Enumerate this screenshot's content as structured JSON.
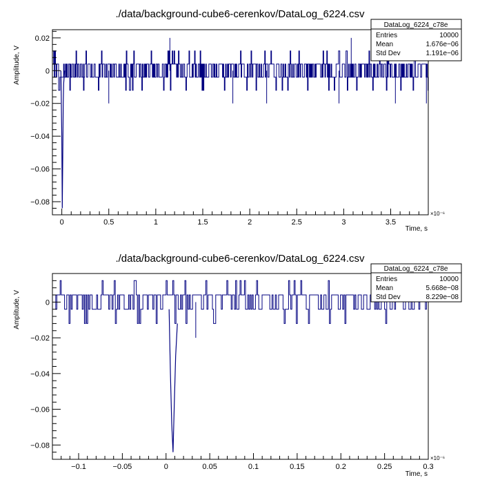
{
  "chart_data": [
    {
      "type": "line",
      "title": "./data/background-cube6-cerenkov/DataLog_6224.csv",
      "xlabel": "Time, s",
      "ylabel": "Amplitude, V",
      "x_exponent": "×10⁻⁶",
      "xlim": [
        -0.1,
        3.9
      ],
      "ylim": [
        -0.088,
        0.025
      ],
      "x_ticks": [
        0,
        0.5,
        1,
        1.5,
        2,
        2.5,
        3,
        3.5
      ],
      "x_tick_labels": [
        "0",
        "0.5",
        "1",
        "1.5",
        "2",
        "2.5",
        "3",
        "3.5"
      ],
      "y_ticks": [
        0.02,
        0,
        -0.02,
        -0.04,
        -0.06,
        -0.08
      ],
      "y_tick_labels": [
        "0.02",
        "0",
        "−0.02",
        "−0.04",
        "−0.06",
        "−0.08"
      ],
      "series_color": "#000080",
      "baseline": {
        "x_range": [
          -0.1,
          3.9
        ],
        "levels": [
          0.004,
          -0.004
        ],
        "noise_band": [
          -0.012,
          0.012
        ]
      },
      "pulse": {
        "x": [
          -0.01,
          0.0,
          0.005,
          0.01,
          0.015,
          0.02,
          0.03
        ],
        "y": [
          0.0,
          -0.04,
          -0.084,
          -0.053,
          -0.02,
          -0.008,
          0.0
        ]
      },
      "outliers": [
        {
          "x": 1.15,
          "y": 0.02
        },
        {
          "x": 3.08,
          "y": 0.02
        },
        {
          "x": 0.5,
          "y": -0.02
        },
        {
          "x": 1.82,
          "y": -0.02
        },
        {
          "x": 2.18,
          "y": -0.02
        },
        {
          "x": 2.95,
          "y": -0.02
        },
        {
          "x": 3.55,
          "y": -0.02
        },
        {
          "x": 3.88,
          "y": -0.02
        }
      ],
      "stats": {
        "name": "DataLog_6224_c78e",
        "rows": [
          {
            "label": "Entries",
            "value": "10000"
          },
          {
            "label": "Mean",
            "value": "1.676e−06"
          },
          {
            "label": "Std Dev",
            "value": "1.191e−06"
          }
        ]
      }
    },
    {
      "type": "line",
      "title": "./data/background-cube6-cerenkov/DataLog_6224.csv",
      "xlabel": "Time, s",
      "ylabel": "Amplitude, V",
      "x_exponent": "×10⁻⁶",
      "xlim": [
        -0.13,
        0.3
      ],
      "ylim": [
        -0.088,
        0.016
      ],
      "x_ticks": [
        -0.1,
        -0.05,
        0,
        0.05,
        0.1,
        0.15,
        0.2,
        0.25,
        0.3
      ],
      "x_tick_labels": [
        "−0.1",
        "−0.05",
        "0",
        "0.05",
        "0.1",
        "0.15",
        "0.2",
        "0.25",
        "0.3"
      ],
      "y_ticks": [
        0,
        -0.02,
        -0.04,
        -0.06,
        -0.08
      ],
      "y_tick_labels": [
        "0",
        "−0.02",
        "−0.04",
        "−0.06",
        "−0.08"
      ],
      "series_color": "#000080",
      "baseline": {
        "x_range": [
          -0.13,
          0.3
        ],
        "levels": [
          0.004,
          -0.004
        ],
        "noise_band": [
          -0.012,
          0.012
        ]
      },
      "pulse": {
        "x": [
          0.0035,
          0.005,
          0.0065,
          0.008,
          0.0095,
          0.011,
          0.013
        ],
        "y": [
          -0.004,
          -0.04,
          -0.068,
          -0.084,
          -0.056,
          -0.03,
          -0.012
        ]
      },
      "outliers": [
        {
          "x": 0.034,
          "y": -0.02
        }
      ],
      "stats": {
        "name": "DataLog_6224_c78e",
        "rows": [
          {
            "label": "Entries",
            "value": "10000"
          },
          {
            "label": "Mean",
            "value": "5.668e−08"
          },
          {
            "label": "Std Dev",
            "value": "8.229e−08"
          }
        ]
      }
    }
  ]
}
